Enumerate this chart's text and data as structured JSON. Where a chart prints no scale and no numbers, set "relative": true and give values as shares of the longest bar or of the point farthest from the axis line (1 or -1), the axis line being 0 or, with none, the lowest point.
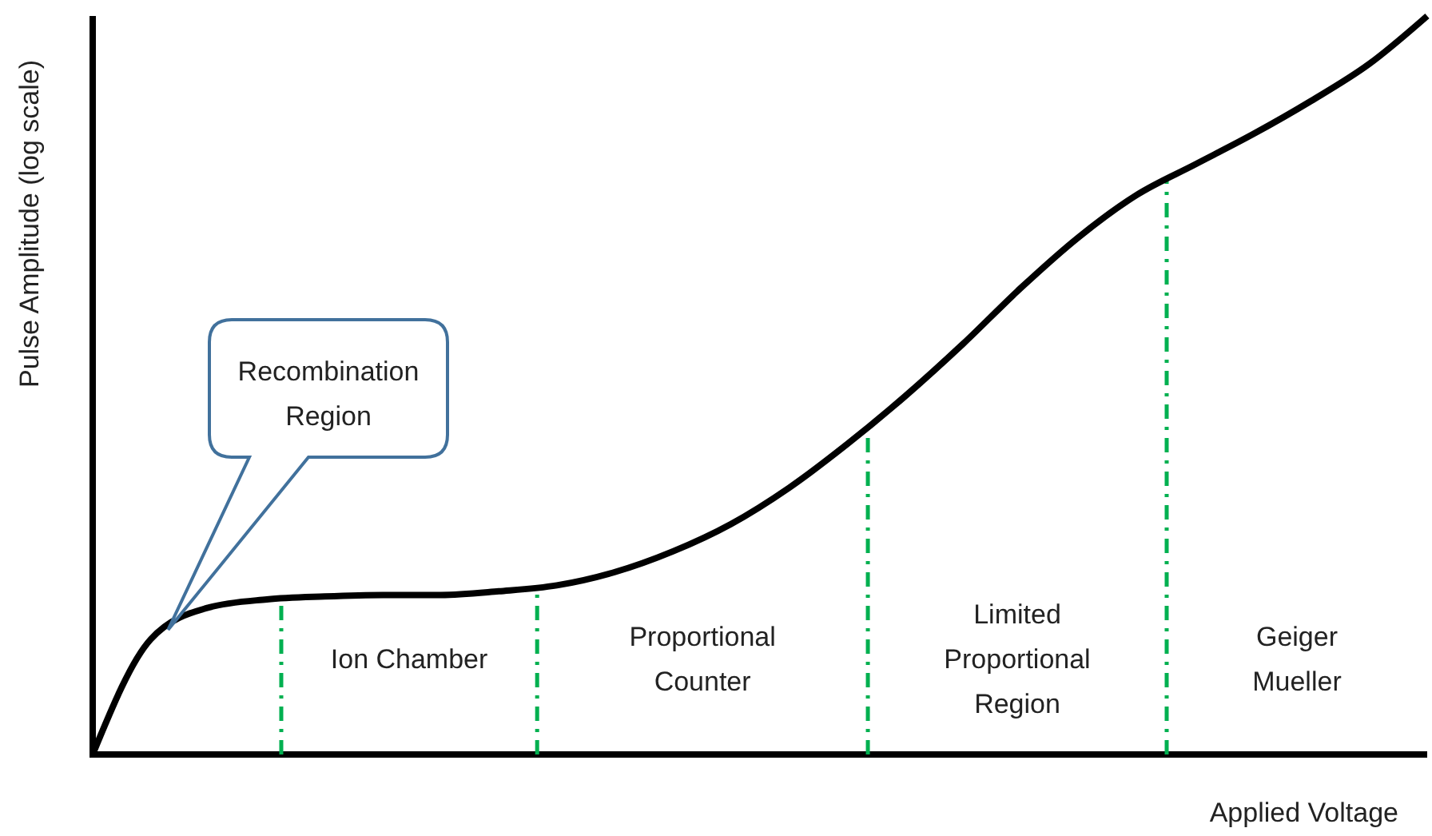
{
  "chart_data": {
    "type": "line",
    "relative": true,
    "xlabel": "Applied Voltage",
    "ylabel": "Pulse Amplitude (log scale)",
    "categories": [
      null,
      null,
      null,
      null,
      null,
      null,
      null,
      null,
      null,
      null,
      null,
      null,
      null,
      null,
      null,
      null,
      null,
      null,
      null,
      null,
      null,
      null,
      null,
      null
    ],
    "series": [
      {
        "color": "#000000",
        "values": [
          0,
          0.156,
          0.199,
          0.21,
          0.214,
          0.216,
          0.216,
          0.221,
          0.229,
          0.247,
          0.275,
          0.312,
          0.361,
          0.42,
          0.485,
          0.556,
          0.632,
          0.701,
          0.758,
          0.799,
          0.84,
          0.885,
          0.935,
          1
        ]
      }
    ],
    "annotations": [
      "Recombination Region",
      "Ion Chamber",
      "Proportional Counter",
      "Limited Proportional Region",
      "Geiger Mueller"
    ],
    "marker": "none",
    "line_style": "solid"
  }
}
